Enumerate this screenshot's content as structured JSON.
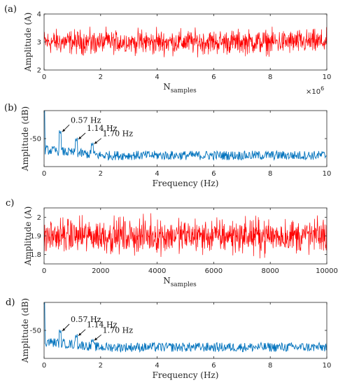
{
  "chart_data": [
    {
      "panel": "(a)",
      "type": "line",
      "ylabel": "Amplitude (A)",
      "xlabel": "N",
      "xlabel_sub": "samples",
      "x_exponent_label": "×10",
      "x_exponent_power": "6",
      "xlim": [
        0,
        10
      ],
      "ylim": [
        2,
        4
      ],
      "xticks": [
        "0",
        "2",
        "4",
        "6",
        "8",
        "10"
      ],
      "yticks": [
        "2",
        "3",
        "4"
      ],
      "series": [
        {
          "color": "#ff0000",
          "mean": 3.0,
          "min": 2.45,
          "max": 3.55
        }
      ]
    },
    {
      "panel": "(b)",
      "type": "line",
      "ylabel": "Amplitude (dB)",
      "xlabel": "Frequency (Hz)",
      "xlim": [
        0,
        10
      ],
      "ylim": [
        -80,
        -20
      ],
      "xticks": [
        "0",
        "2",
        "4",
        "6",
        "8",
        "10"
      ],
      "yticks": [
        "-50"
      ],
      "series": [
        {
          "color": "#0072bd",
          "baseline": -68,
          "peaks": [
            [
              0.0,
              -20
            ],
            [
              0.57,
              -45
            ],
            [
              1.14,
              -53
            ],
            [
              1.7,
              -58
            ]
          ]
        }
      ],
      "annotations": [
        "0.57 Hz",
        "1.14 Hz",
        "1.70 Hz"
      ]
    },
    {
      "panel": "c)",
      "type": "line",
      "ylabel": "Amplitude (A)",
      "xlabel": "N",
      "xlabel_sub": "samples",
      "xlim": [
        0,
        10000
      ],
      "ylim": [
        1.75,
        2.05
      ],
      "xticks": [
        "0",
        "2000",
        "4000",
        "6000",
        "8000",
        "10000"
      ],
      "yticks": [
        "1.8",
        "1.9",
        "2"
      ],
      "series": [
        {
          "color": "#ff0000",
          "mean": 1.9,
          "min": 1.75,
          "max": 2.05
        }
      ]
    },
    {
      "panel": "d)",
      "type": "line",
      "ylabel": "Amplitude (dB)",
      "xlabel": "Frequency (Hz)",
      "xlim": [
        0,
        10
      ],
      "ylim": [
        -80,
        -20
      ],
      "xticks": [
        "0",
        "2",
        "4",
        "6",
        "8",
        "10"
      ],
      "yticks": [
        "-50"
      ],
      "series": [
        {
          "color": "#0072bd",
          "baseline": -68,
          "peaks": [
            [
              0.0,
              -20
            ],
            [
              0.57,
              -53
            ],
            [
              1.14,
              -58
            ],
            [
              1.7,
              -63
            ]
          ]
        }
      ],
      "annotations": [
        "0.57 Hz",
        "1.14 Hz",
        "1.70 Hz"
      ]
    }
  ]
}
